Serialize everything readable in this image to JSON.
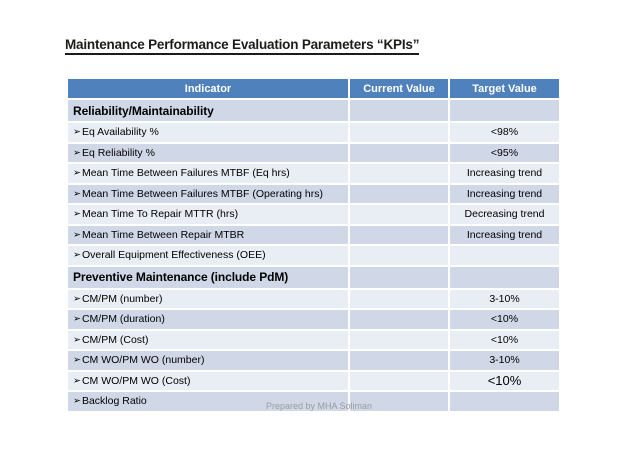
{
  "slide": {
    "title": "Maintenance Performance Evaluation Parameters “KPIs”",
    "footer": "Prepared by MHA Soliman"
  },
  "table": {
    "bullet": "➢",
    "columns": [
      "Indicator",
      "Current Value",
      "Target Value"
    ],
    "rows": [
      {
        "type": "section",
        "indicator": "Reliability/Maintainability",
        "current": "",
        "target": ""
      },
      {
        "type": "data",
        "indicator": "Eq Availability %",
        "current": "",
        "target": "<98%"
      },
      {
        "type": "data",
        "indicator": "Eq Reliability %",
        "current": "",
        "target": "<95%"
      },
      {
        "type": "data",
        "indicator": "Mean Time Between Failures MTBF (Eq hrs)",
        "current": "",
        "target": "Increasing trend"
      },
      {
        "type": "data",
        "indicator": "Mean Time Between Failures MTBF (Operating hrs)",
        "current": "",
        "target": "Increasing trend"
      },
      {
        "type": "data",
        "indicator": "Mean Time To Repair MTTR (hrs)",
        "current": "",
        "target": "Decreasing trend"
      },
      {
        "type": "data",
        "indicator": "Mean Time Between Repair MTBR",
        "current": "",
        "target": "Increasing trend"
      },
      {
        "type": "data",
        "indicator": "Overall Equipment Effectiveness (OEE)",
        "current": "",
        "target": ""
      },
      {
        "type": "section",
        "indicator": "Preventive Maintenance (include PdM)",
        "current": "",
        "target": ""
      },
      {
        "type": "data",
        "indicator": "CM/PM (number)",
        "current": "",
        "target": "3-10%"
      },
      {
        "type": "data",
        "indicator": "CM/PM (duration)",
        "current": "",
        "target": "<10%"
      },
      {
        "type": "data",
        "indicator": "CM/PM (Cost)",
        "current": "",
        "target": "<10%"
      },
      {
        "type": "data",
        "indicator": "CM WO/PM WO (number)",
        "current": "",
        "target": "3-10%"
      },
      {
        "type": "data",
        "indicator": "CM WO/PM WO (Cost)",
        "current": "",
        "target": "<10%",
        "target_large": true
      },
      {
        "type": "data",
        "indicator": "Backlog Ratio",
        "current": "",
        "target": ""
      }
    ]
  },
  "colors": {
    "page_bg": "#FFFFFF",
    "header_bg": "#4F81BD",
    "header_text": "#FFFFFF",
    "band_dark": "#D0D8E8",
    "band_light": "#E9EDF4",
    "title_text": "#1D1C1A",
    "body_text": "#000000",
    "footer_text": "#9B9B9B"
  }
}
